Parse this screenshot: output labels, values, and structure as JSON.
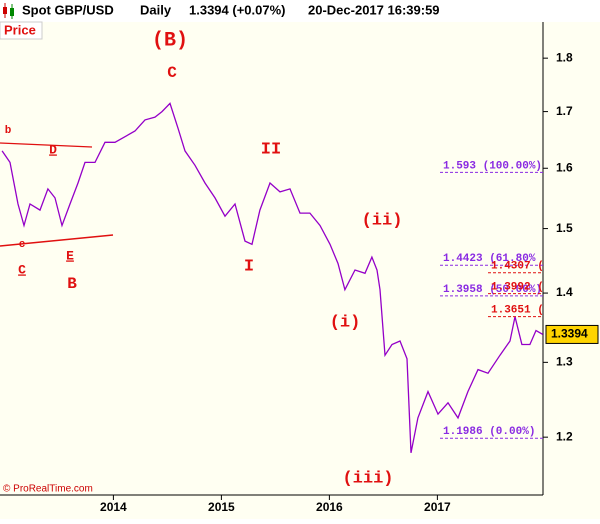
{
  "chart_data": {
    "type": "line",
    "title": "Spot GBP/USD",
    "interval": "Daily",
    "change": "1.3394 (+0.07%)",
    "timestamp": "20-Dec-2017 16:39:59",
    "panel_label": "Price",
    "credit": "© ProRealTime.com",
    "color": "#9400c8",
    "log_scale": true,
    "x": [
      2012.969,
      2013.043,
      2013.117,
      2013.172,
      2013.228,
      2013.32,
      2013.394,
      2013.459,
      2013.524,
      2013.598,
      2013.672,
      2013.737,
      2013.83,
      2013.922,
      2014.015,
      2014.107,
      2014.2,
      2014.293,
      2014.385,
      2014.45,
      2014.524,
      2014.598,
      2014.663,
      2014.756,
      2014.848,
      2014.941,
      2015.033,
      2015.126,
      2015.219,
      2015.283,
      2015.357,
      2015.45,
      2015.543,
      2015.635,
      2015.728,
      2015.82,
      2015.913,
      2016.006,
      2016.08,
      2016.144,
      2016.237,
      2016.33,
      2016.394,
      2016.441,
      2016.469,
      2016.515,
      2016.58,
      2016.654,
      2016.719,
      2016.756,
      2016.82,
      2016.913,
      2017.006,
      2017.098,
      2017.191,
      2017.283,
      2017.376,
      2017.469,
      2017.58,
      2017.672,
      2017.719,
      2017.783,
      2017.857,
      2017.913,
      2017.976
    ],
    "values": [
      1.63,
      1.61,
      1.54,
      1.505,
      1.54,
      1.53,
      1.565,
      1.55,
      1.505,
      1.54,
      1.575,
      1.61,
      1.61,
      1.645,
      1.645,
      1.655,
      1.665,
      1.685,
      1.69,
      1.7,
      1.715,
      1.67,
      1.63,
      1.605,
      1.575,
      1.55,
      1.52,
      1.54,
      1.48,
      1.475,
      1.53,
      1.575,
      1.56,
      1.565,
      1.525,
      1.525,
      1.505,
      1.475,
      1.445,
      1.405,
      1.435,
      1.43,
      1.455,
      1.435,
      1.405,
      1.31,
      1.325,
      1.33,
      1.305,
      1.18,
      1.225,
      1.26,
      1.23,
      1.245,
      1.225,
      1.26,
      1.29,
      1.285,
      1.31,
      1.33,
      1.365,
      1.325,
      1.325,
      1.345,
      1.3394
    ],
    "xlim": [
      2012.95,
      2017.978
    ],
    "xticks": [
      2014,
      2015,
      2016,
      2017
    ],
    "ylim": [
      1.128,
      1.871
    ],
    "yticks": [
      1.2,
      1.3,
      1.4,
      1.5,
      1.6,
      1.7,
      1.8
    ],
    "last_price": 1.3394,
    "levels": [
      {
        "value": 1.593,
        "label": "1.593 (100.00%)",
        "color": "#8a2be2"
      },
      {
        "value": 1.4423,
        "label": "1.4423 (61.80%",
        "color": "#8a2be2"
      },
      {
        "value": 1.4307,
        "label": "1.4307 (",
        "color": "#e01010"
      },
      {
        "value": 1.3958,
        "label": "1.3958 (50.00%)",
        "color": "#8a2be2"
      },
      {
        "value": 1.3992,
        "label": "1.3992 (",
        "color": "#e01010"
      },
      {
        "value": 1.3651,
        "label": "1.3651 (",
        "color": "#e01010"
      },
      {
        "value": 1.1986,
        "label": "1.1986 (0.00%)",
        "color": "#8a2be2"
      }
    ],
    "wave_labels": [
      "(B)",
      "C",
      "b",
      "D",
      "c",
      "C",
      "E",
      "B",
      "II",
      "I",
      "(ii)",
      "(i)",
      "(iii)"
    ]
  }
}
